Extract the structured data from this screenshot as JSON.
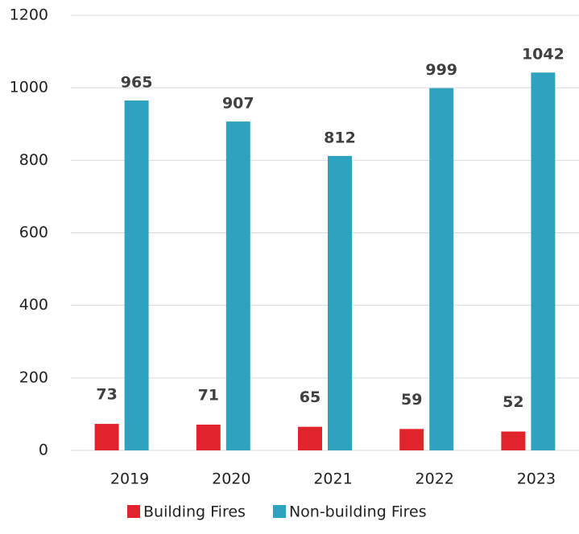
{
  "chart_data": {
    "type": "bar",
    "categories": [
      "2019",
      "2020",
      "2021",
      "2022",
      "2023"
    ],
    "series": [
      {
        "name": "Building Fires",
        "color": "#e0242c",
        "values": [
          73,
          71,
          65,
          59,
          52
        ]
      },
      {
        "name": "Non-building Fires",
        "color": "#2ea3c0",
        "values": [
          965,
          907,
          812,
          999,
          1042
        ]
      }
    ],
    "ylim": [
      0,
      1200
    ],
    "yticks": [
      0,
      200,
      400,
      600,
      800,
      1000,
      1200
    ],
    "grid": true,
    "legend": "bottom"
  }
}
